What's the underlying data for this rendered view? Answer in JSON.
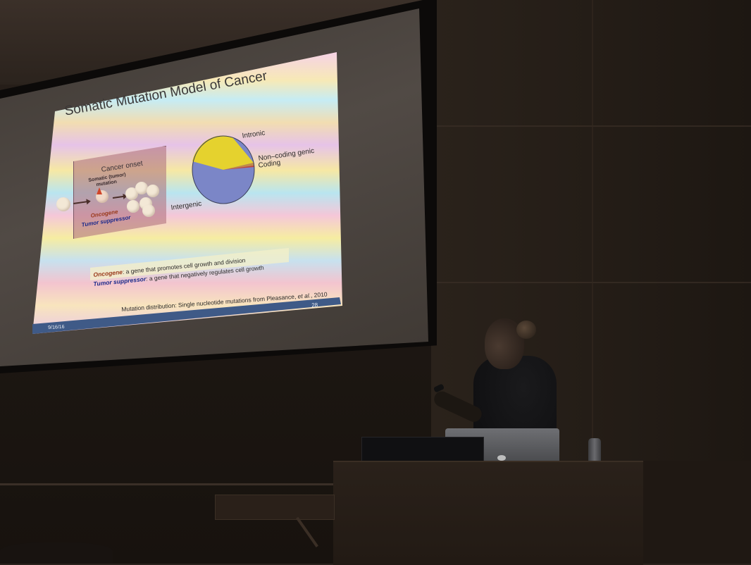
{
  "slide": {
    "title": "Somatic Mutation Model of Cancer",
    "diagram": {
      "box_title": "Cancer onset",
      "somatic_label_line1": "Somatic (tumor)",
      "somatic_label_line2": "mutation",
      "oncogene_label": "Oncogene",
      "tumor_suppressor_label": "Tumor suppressor"
    },
    "pie": {
      "labels": [
        "Intronic",
        "Non–coding genic",
        "Coding",
        "Intergenic"
      ],
      "colors": [
        "#e5d22e",
        "#c08b4a",
        "#c2413a",
        "#7b86c7"
      ]
    },
    "definitions": {
      "oncogene_term": "Oncogene",
      "oncogene_text": ": a gene that promotes cell growth and division",
      "tumor_term": "Tumor suppressor",
      "tumor_text": ": a gene that negatively regulates cell growth"
    },
    "footnote_prefix": "Mutation distribution: Single nucleotide mutations from Pleasance, ",
    "footnote_etal": "et al.",
    "footnote_suffix": ", 2010",
    "page_number": "28",
    "date": "9/16/16"
  }
}
